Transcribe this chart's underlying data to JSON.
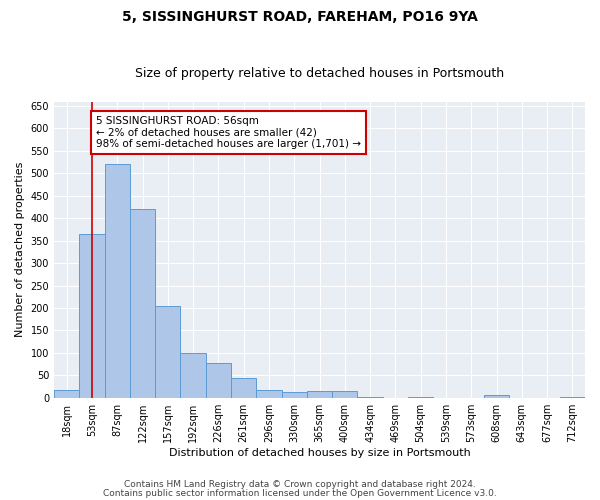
{
  "title": "5, SISSINGHURST ROAD, FAREHAM, PO16 9YA",
  "subtitle": "Size of property relative to detached houses in Portsmouth",
  "xlabel": "Distribution of detached houses by size in Portsmouth",
  "ylabel": "Number of detached properties",
  "bar_labels": [
    "18sqm",
    "53sqm",
    "87sqm",
    "122sqm",
    "157sqm",
    "192sqm",
    "226sqm",
    "261sqm",
    "296sqm",
    "330sqm",
    "365sqm",
    "400sqm",
    "434sqm",
    "469sqm",
    "504sqm",
    "539sqm",
    "573sqm",
    "608sqm",
    "643sqm",
    "677sqm",
    "712sqm"
  ],
  "bar_values": [
    18,
    365,
    520,
    420,
    205,
    100,
    78,
    45,
    18,
    13,
    15,
    15,
    2,
    0,
    2,
    0,
    0,
    5,
    0,
    0,
    2
  ],
  "bar_color": "#aec6e8",
  "bar_edge_color": "#5b9bd5",
  "background_color": "#e8eef4",
  "property_line_x": 1,
  "property_line_color": "#cc0000",
  "annotation_text": "5 SISSINGHURST ROAD: 56sqm\n← 2% of detached houses are smaller (42)\n98% of semi-detached houses are larger (1,701) →",
  "annotation_box_color": "#cc0000",
  "ylim": [
    0,
    660
  ],
  "yticks": [
    0,
    50,
    100,
    150,
    200,
    250,
    300,
    350,
    400,
    450,
    500,
    550,
    600,
    650
  ],
  "footer1": "Contains HM Land Registry data © Crown copyright and database right 2024.",
  "footer2": "Contains public sector information licensed under the Open Government Licence v3.0.",
  "title_fontsize": 10,
  "subtitle_fontsize": 9,
  "axis_label_fontsize": 8,
  "tick_fontsize": 7,
  "annotation_fontsize": 7.5,
  "footer_fontsize": 6.5
}
